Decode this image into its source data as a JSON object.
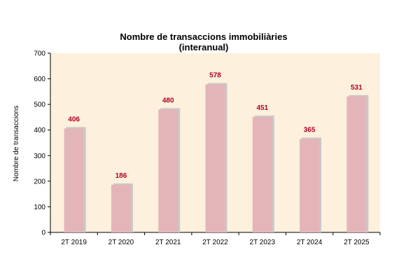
{
  "chart_data": {
    "type": "bar",
    "title": "Nombre de transaccions immobiliàries",
    "subtitle": "(interanual)",
    "xlabel": "",
    "ylabel": "Nombre de transaccions",
    "categories": [
      "2T 2019",
      "2T 2020",
      "2T 2021",
      "2T 2022",
      "2T 2023",
      "2T 2024",
      "2T 2025"
    ],
    "values": [
      406,
      186,
      480,
      578,
      451,
      365,
      531
    ],
    "ylim": [
      0,
      700
    ],
    "yticks": [
      0,
      100,
      200,
      300,
      400,
      500,
      600,
      700
    ],
    "grid": false,
    "legend": "none",
    "colors": {
      "plot_background": "#FDF0DC",
      "bar_fill": "#E3B5B8",
      "bar_shadow": "#C9C9C9",
      "data_label": "#B00020",
      "axis": "#000000"
    }
  }
}
